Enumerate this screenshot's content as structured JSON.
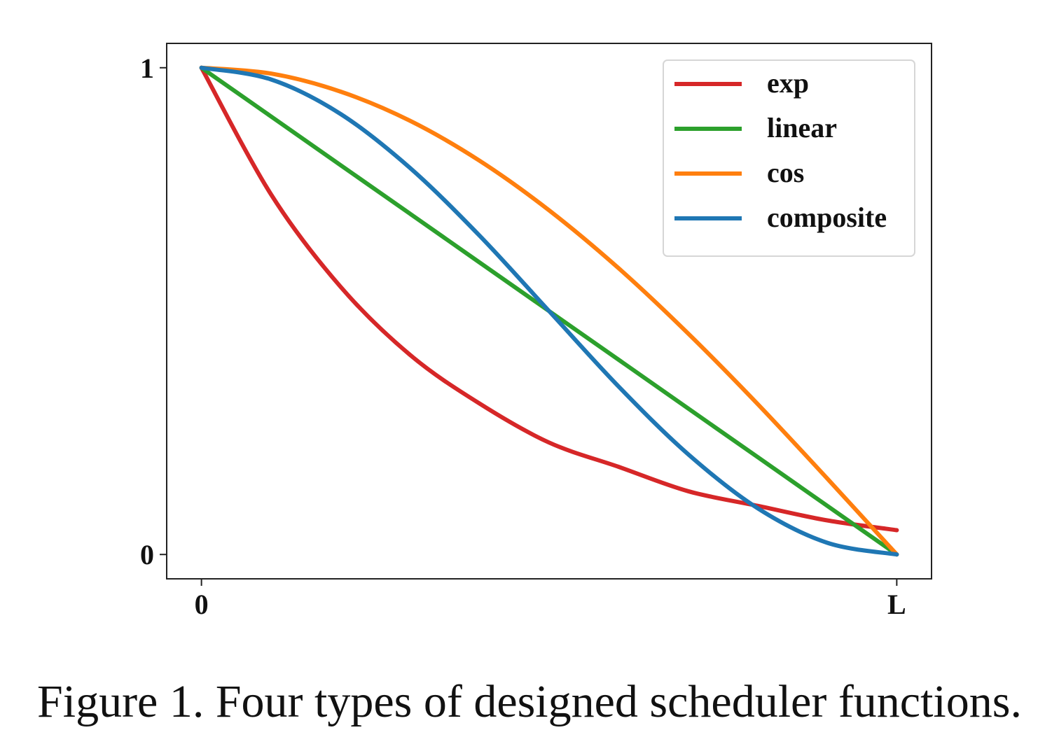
{
  "caption": "Figure 1. Four types of designed scheduler functions.",
  "chart_data": {
    "type": "line",
    "title": "",
    "xlabel": "",
    "ylabel": "",
    "xlim": [
      -0.05,
      1.05
    ],
    "ylim": [
      -0.05,
      1.05
    ],
    "grid": false,
    "legend_position": "top-right",
    "x_ticks": [
      {
        "value": 0,
        "label": "0"
      },
      {
        "value": 1,
        "label": "L"
      }
    ],
    "y_ticks": [
      {
        "value": 0,
        "label": "0"
      },
      {
        "value": 1,
        "label": "1"
      }
    ],
    "x": [
      0,
      0.1,
      0.2,
      0.3,
      0.4,
      0.5,
      0.6,
      0.7,
      0.8,
      0.9,
      1.0
    ],
    "series": [
      {
        "name": "exp",
        "color": "#d62728",
        "values": [
          1.0,
          0.74,
          0.55,
          0.41,
          0.31,
          0.23,
          0.18,
          0.13,
          0.1,
          0.07,
          0.05
        ]
      },
      {
        "name": "linear",
        "color": "#2ca02c",
        "values": [
          1.0,
          0.9,
          0.8,
          0.7,
          0.6,
          0.5,
          0.4,
          0.3,
          0.2,
          0.1,
          0.0
        ]
      },
      {
        "name": "cos",
        "color": "#ff7f0e",
        "values": [
          1.0,
          0.988,
          0.951,
          0.891,
          0.809,
          0.707,
          0.588,
          0.454,
          0.309,
          0.156,
          0.0
        ]
      },
      {
        "name": "composite",
        "color": "#1f77b4",
        "values": [
          1.0,
          0.976,
          0.905,
          0.794,
          0.655,
          0.5,
          0.345,
          0.206,
          0.095,
          0.024,
          0.0
        ]
      }
    ]
  }
}
